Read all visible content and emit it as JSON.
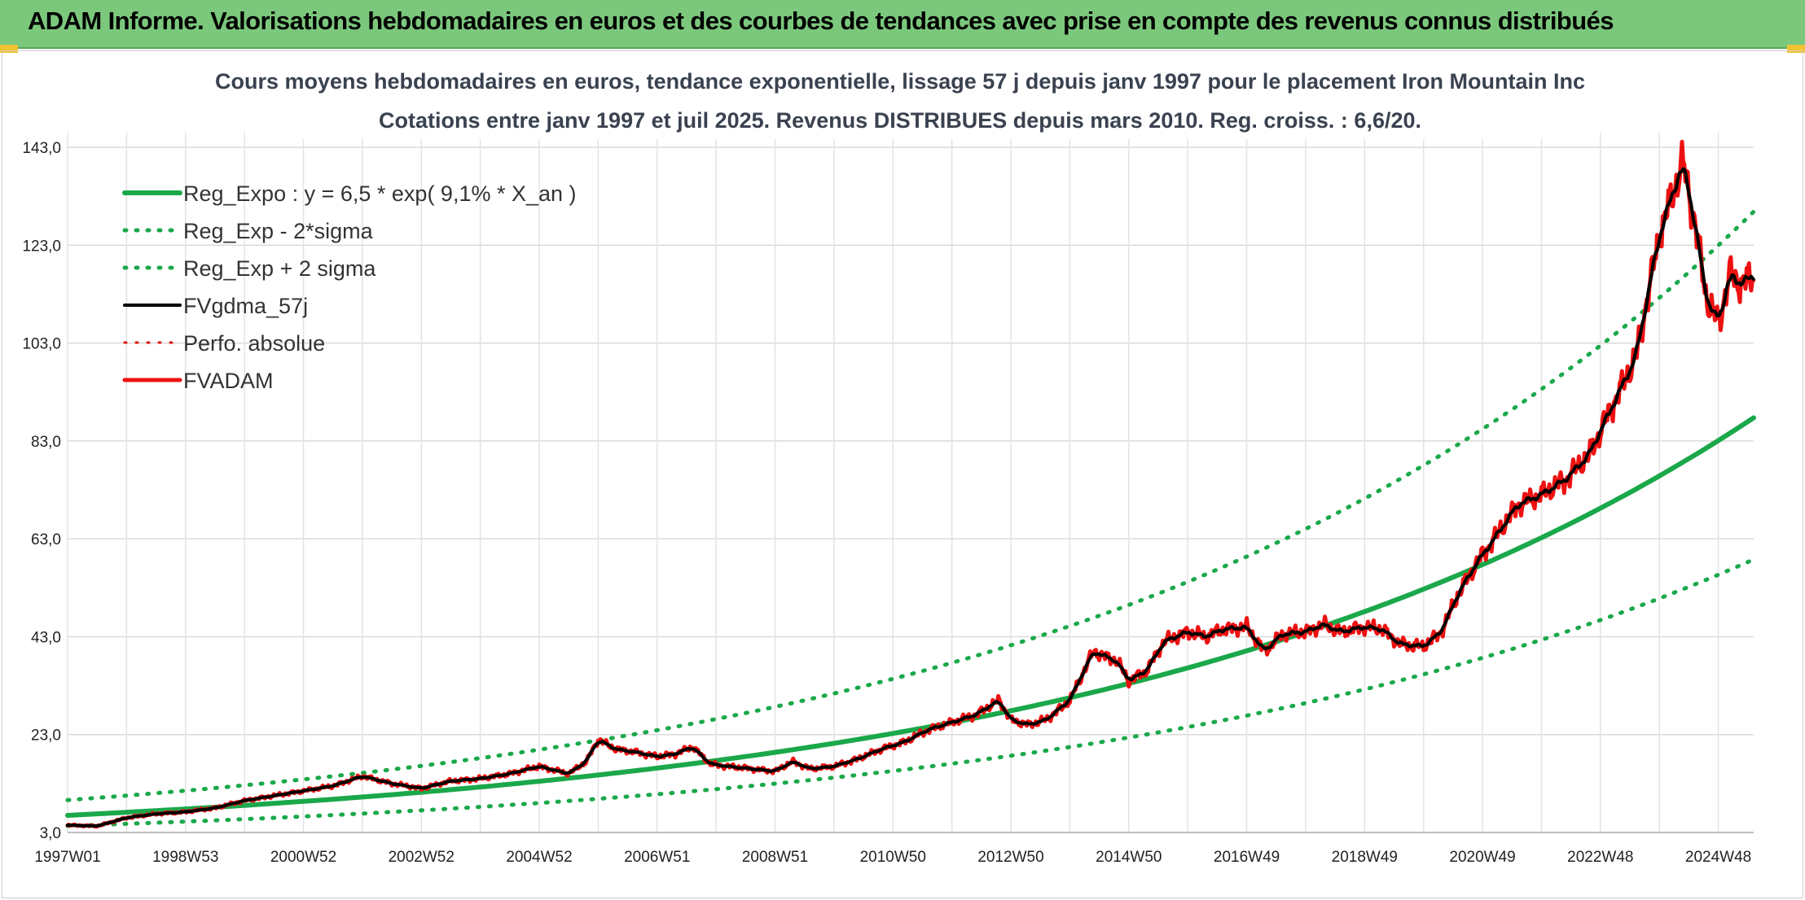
{
  "banner": {
    "title": "ADAM Informe. Valorisations hebdomadaires en euros et des courbes de tendances avec prise en compte des revenus connus distribués",
    "color": "#7bc87c"
  },
  "chart_data": {
    "type": "line",
    "title_line1": "Cours moyens hebdomadaires en euros, tendance exponentielle, lissage 57 j depuis janv 1997 pour le placement Iron Mountain Inc",
    "title_line2": "Cotations entre janv 1997 et juil 2025. Revenus DISTRIBUES depuis mars 2010. Reg. croiss. : 6,6/20.",
    "xlabel": "",
    "ylabel": "",
    "x_ticks": [
      "1997W01",
      "1998W53",
      "2000W52",
      "2002W52",
      "2004W52",
      "2006W51",
      "2008W51",
      "2010W50",
      "2012W50",
      "2014W50",
      "2016W49",
      "2018W49",
      "2020W49",
      "2022W48",
      "2024W48"
    ],
    "x_tick_years": [
      1997.0,
      1999.0,
      2001.0,
      2003.0,
      2005.0,
      2007.0,
      2009.0,
      2011.0,
      2013.0,
      2015.0,
      2017.0,
      2019.0,
      2021.0,
      2023.0,
      2025.0
    ],
    "xlim": [
      1997.0,
      2025.6
    ],
    "y_ticks": [
      "3,0",
      "23,0",
      "43,0",
      "63,0",
      "83,0",
      "103,0",
      "123,0",
      "143,0"
    ],
    "ylim": [
      3,
      146
    ],
    "grid": true,
    "legend_position": "top-left",
    "regression": {
      "a": 6.5,
      "rate": 0.091,
      "sigma_factor_low": 0.67,
      "sigma_factor_high": 1.48
    },
    "series": [
      {
        "name": "Reg_Expo : y = 6,5 * exp( 9,1% *  X_an )",
        "color": "#1aa84a",
        "style": "solid",
        "width": 6
      },
      {
        "name": "Reg_Exp - 2*sigma",
        "color": "#1aa84a",
        "style": "dotted",
        "width": 5
      },
      {
        "name": "Reg_Exp + 2 sigma",
        "color": "#1aa84a",
        "style": "dotted",
        "width": 5
      },
      {
        "name": "FVgdma_57j",
        "color": "#000000",
        "style": "solid",
        "width": 4
      },
      {
        "name": "Perfo. absolue",
        "color": "#e01010",
        "style": "dotted",
        "width": 3
      },
      {
        "name": "FVADAM",
        "color": "#ee1111",
        "style": "solid",
        "width": 5
      }
    ],
    "fvadam_points": {
      "x": [
        1997.0,
        1997.5,
        1998.0,
        1998.5,
        1999.0,
        1999.5,
        2000.0,
        2000.5,
        2001.0,
        2001.5,
        2002.0,
        2002.5,
        2003.0,
        2003.5,
        2004.0,
        2004.5,
        2005.0,
        2005.5,
        2005.8,
        2006.0,
        2006.3,
        2006.6,
        2007.0,
        2007.3,
        2007.6,
        2007.9,
        2008.2,
        2008.6,
        2009.0,
        2009.3,
        2009.6,
        2010.0,
        2010.4,
        2010.8,
        2011.2,
        2011.6,
        2012.0,
        2012.4,
        2012.8,
        2013.0,
        2013.3,
        2013.6,
        2014.0,
        2014.4,
        2014.8,
        2015.0,
        2015.3,
        2015.6,
        2016.0,
        2016.3,
        2016.6,
        2017.0,
        2017.3,
        2017.6,
        2018.0,
        2018.3,
        2018.6,
        2019.0,
        2019.3,
        2019.6,
        2020.0,
        2020.3,
        2020.6,
        2020.9,
        2021.2,
        2021.6,
        2022.0,
        2022.4,
        2022.8,
        2023.2,
        2023.6,
        2024.0,
        2024.4,
        2024.6,
        2024.8,
        2025.0,
        2025.2,
        2025.4,
        2025.6
      ],
      "y": [
        4.5,
        4.3,
        6.0,
        6.8,
        7.2,
        8.0,
        9.5,
        10.5,
        11.5,
        12.5,
        14.5,
        13.0,
        12.0,
        13.5,
        14.0,
        15.0,
        16.5,
        15.0,
        17.5,
        22.0,
        20.0,
        19.5,
        18.5,
        19.0,
        20.5,
        17.0,
        16.5,
        16.0,
        15.5,
        17.5,
        16.0,
        16.5,
        18.0,
        20.0,
        21.5,
        24.0,
        25.5,
        27.0,
        30.0,
        26.0,
        25.0,
        26.0,
        30.0,
        40.0,
        38.0,
        34.0,
        36.0,
        42.0,
        44.0,
        43.0,
        44.5,
        45.0,
        40.0,
        43.5,
        44.0,
        45.5,
        44.0,
        45.0,
        44.5,
        41.5,
        41.0,
        44.0,
        52.0,
        58.0,
        63.0,
        70.0,
        72.0,
        75.0,
        80.0,
        90.0,
        100.0,
        125.0,
        140.0,
        128.0,
        112.0,
        107.0,
        117.0,
        115.0,
        117.0
      ]
    }
  }
}
